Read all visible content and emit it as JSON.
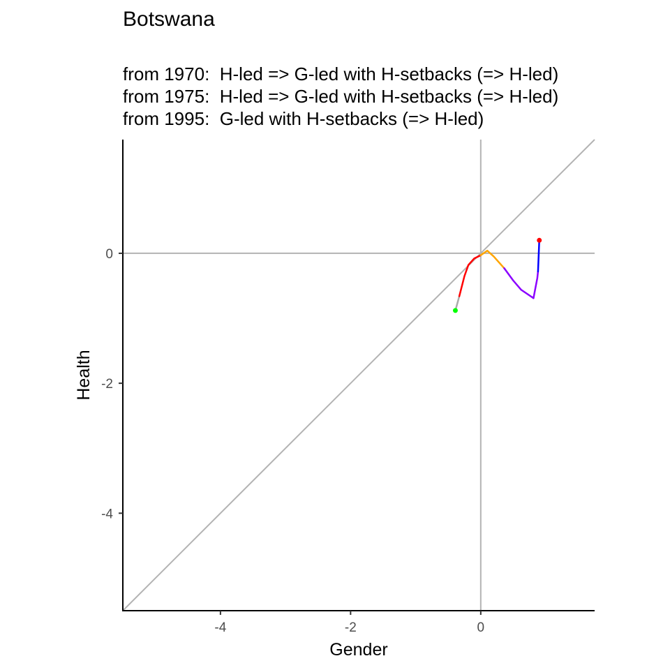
{
  "chart_data": {
    "type": "line",
    "title": "Botswana",
    "subtitle_lines": [
      "from 1970:  H-led => G-led with H-setbacks (=> H-led)",
      "from 1975:  H-led => G-led with H-setbacks (=> H-led)",
      "from 1995:  G-led with H-setbacks (=> H-led)"
    ],
    "xlabel": "Gender",
    "ylabel": "Health",
    "xlim": [
      -5.5,
      1.75
    ],
    "ylim": [
      -5.5,
      1.75
    ],
    "x_ticks": [
      {
        "value": -4,
        "label": "-4"
      },
      {
        "value": -2,
        "label": "-2"
      },
      {
        "value": 0,
        "label": "0"
      }
    ],
    "y_ticks": [
      {
        "value": 0,
        "label": "0"
      },
      {
        "value": -2,
        "label": "-2"
      },
      {
        "value": -4,
        "label": "-4"
      }
    ],
    "reference_lines": {
      "diagonal": "y = x",
      "horizontal": 0,
      "vertical": 0,
      "color": "#b3b3b3"
    },
    "grid": false,
    "series": [
      {
        "segments": [
          {
            "color": "#aaaaaa",
            "points": [
              [
                -0.39,
                -0.88
              ],
              [
                -0.33,
                -0.66
              ]
            ]
          },
          {
            "color": "#ff0000",
            "points": [
              [
                -0.33,
                -0.66
              ],
              [
                -0.25,
                -0.35
              ],
              [
                -0.19,
                -0.18
              ],
              [
                -0.1,
                -0.08
              ],
              [
                0.0,
                -0.03
              ]
            ]
          },
          {
            "color": "#ffa500",
            "points": [
              [
                0.0,
                -0.03
              ],
              [
                0.1,
                0.04
              ],
              [
                0.2,
                -0.05
              ],
              [
                0.36,
                -0.23
              ]
            ]
          },
          {
            "color": "#8b00ff",
            "points": [
              [
                0.36,
                -0.23
              ],
              [
                0.5,
                -0.42
              ],
              [
                0.62,
                -0.56
              ],
              [
                0.81,
                -0.69
              ]
            ]
          },
          {
            "color": "#8b00ff",
            "points": [
              [
                0.81,
                -0.69
              ],
              [
                0.87,
                -0.38
              ],
              [
                0.88,
                -0.28
              ]
            ]
          },
          {
            "color": "#0000ff",
            "points": [
              [
                0.88,
                -0.28
              ],
              [
                0.9,
                0.2
              ]
            ]
          }
        ],
        "start_point": {
          "x": -0.39,
          "y": -0.88,
          "color": "#00ff00"
        },
        "end_point": {
          "x": 0.9,
          "y": 0.2,
          "color": "#ff0000"
        }
      }
    ]
  }
}
